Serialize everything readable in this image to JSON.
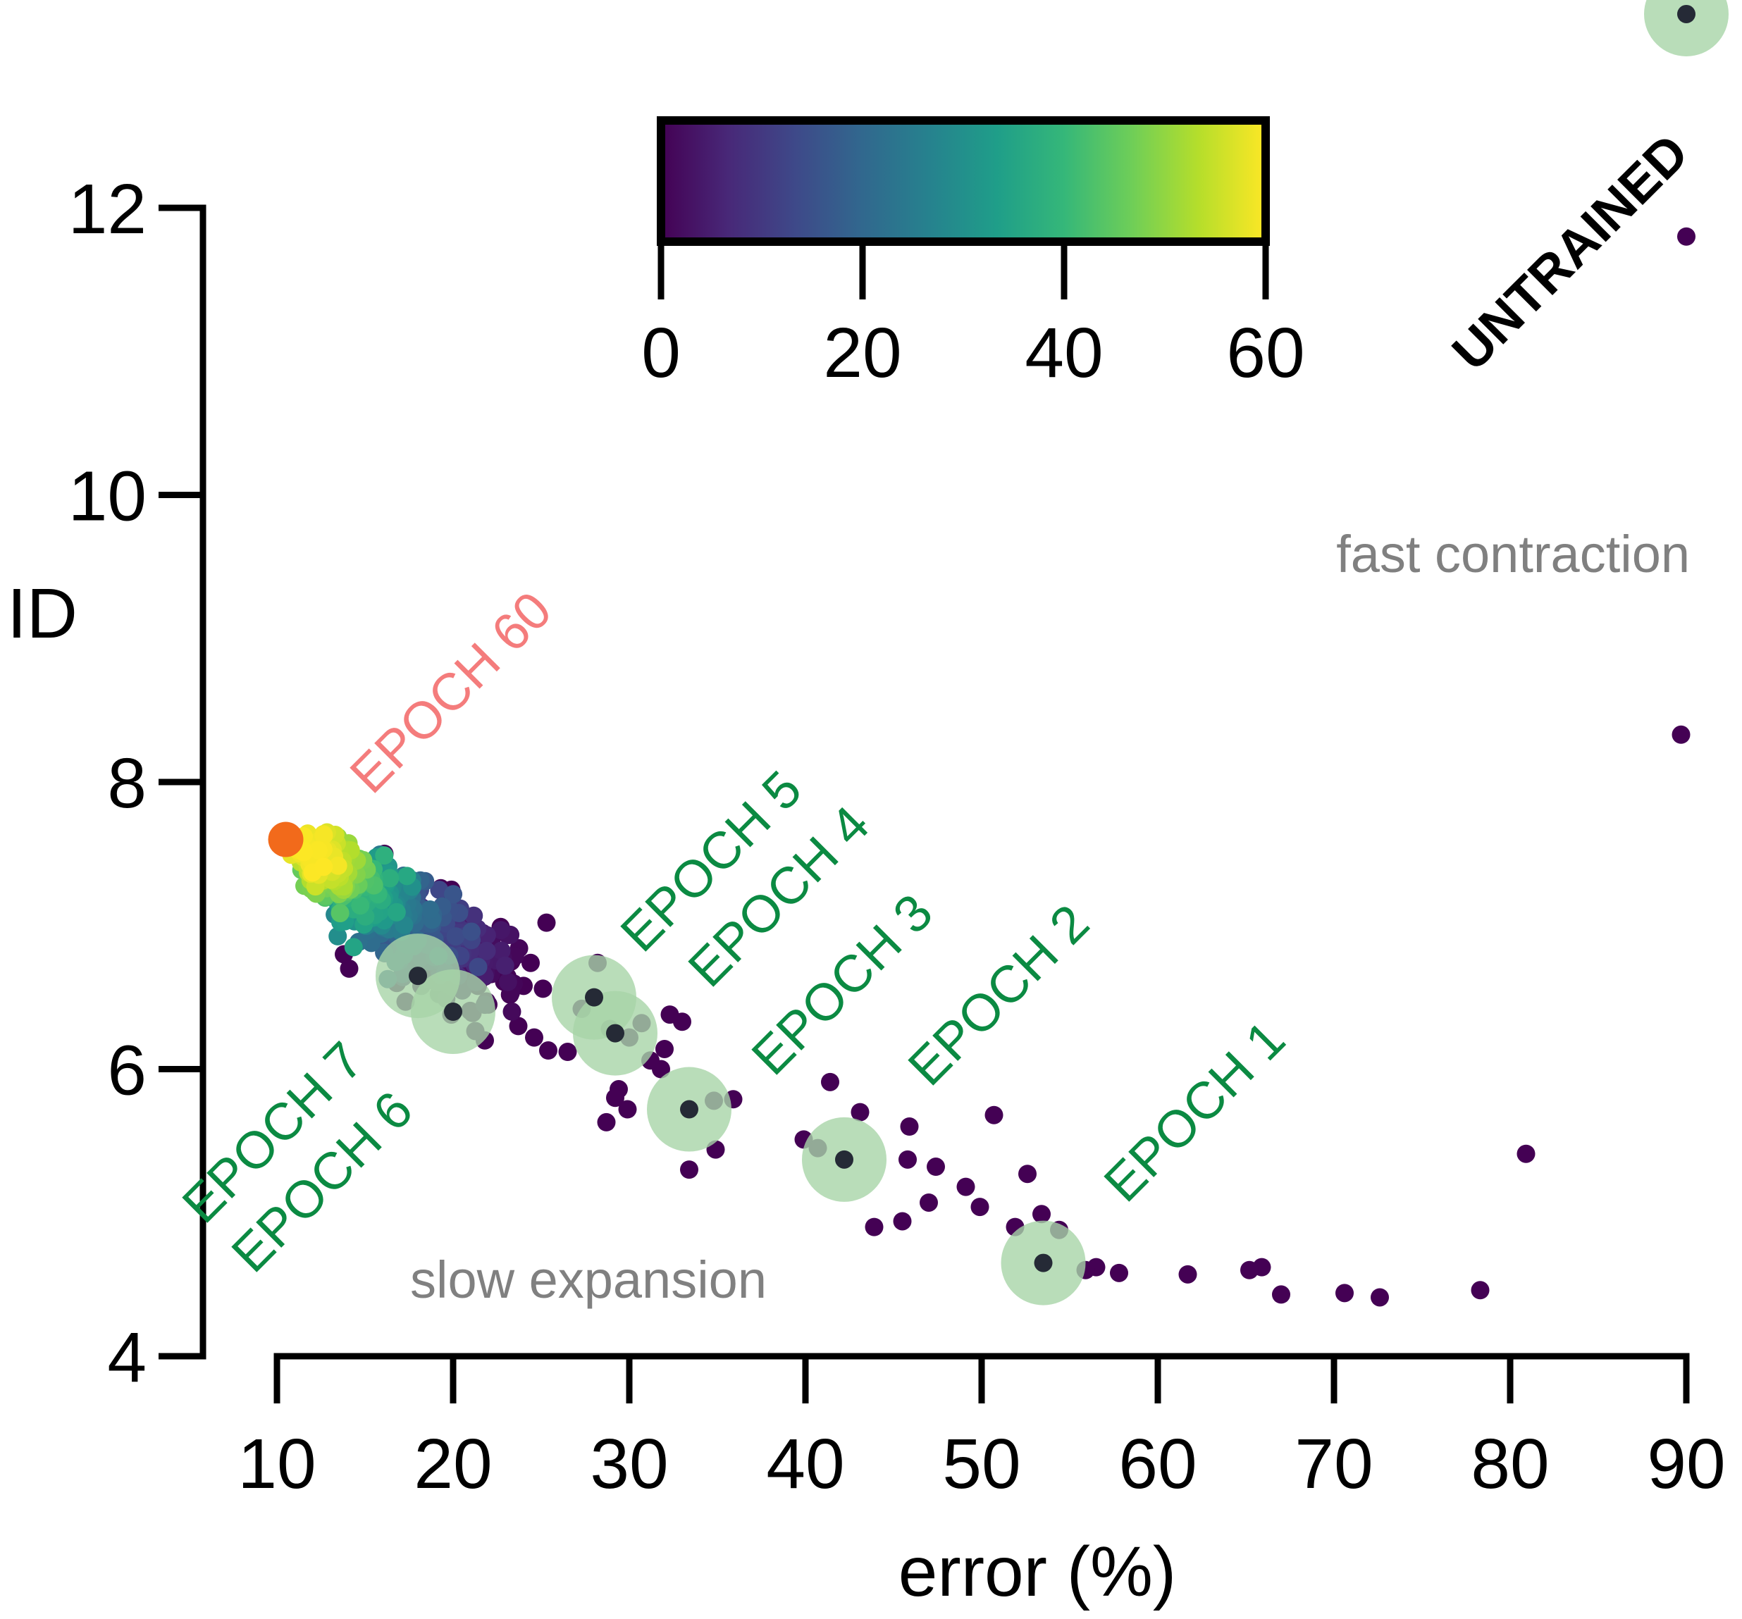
{
  "chart_data": {
    "type": "scatter",
    "xlabel": "error (%)",
    "ylabel": "ID",
    "xlim": [
      10,
      90
    ],
    "ylim": [
      4,
      12
    ],
    "xticks": [
      "10",
      "20",
      "30",
      "40",
      "50",
      "60",
      "70",
      "80",
      "90"
    ],
    "yticks": [
      "4",
      "6",
      "8",
      "10",
      "12"
    ],
    "colorbar": {
      "colormap": "viridis",
      "range": [
        0,
        60
      ],
      "ticks": [
        "0",
        "20",
        "40",
        "60"
      ],
      "highlight_tick": "60",
      "highlight_color": "#f47c7c",
      "stops": [
        "#440154",
        "#482878",
        "#3e4989",
        "#31688e",
        "#26828e",
        "#1f9e89",
        "#35b779",
        "#6ece58",
        "#b5de2b",
        "#fde725"
      ]
    },
    "colors": {
      "epoch_text": "#0b8a42",
      "epoch_halo": "#a8d5a8",
      "last_epoch_text": "#f47c7c",
      "last_epoch_point": "#f26a1b",
      "highlight_point": "#252a36",
      "region_text": "#808080"
    },
    "annotations": {
      "untrained": "UNTRAINED",
      "fast": "fast contraction",
      "slow": "slow expansion"
    },
    "epochs": [
      {
        "label": "EPOCH 1",
        "x": 53.5,
        "y": 4.65
      },
      {
        "label": "EPOCH 2",
        "x": 42.2,
        "y": 5.37
      },
      {
        "label": "EPOCH 3",
        "x": 33.4,
        "y": 5.72
      },
      {
        "label": "EPOCH 4",
        "x": 29.2,
        "y": 6.25
      },
      {
        "label": "EPOCH 5",
        "x": 28.0,
        "y": 6.5
      },
      {
        "label": "EPOCH 6",
        "x": 20.0,
        "y": 6.4
      },
      {
        "label": "EPOCH 7",
        "x": 18.0,
        "y": 6.65
      },
      {
        "label": "EPOCH 60",
        "x": 10.5,
        "y": 7.6
      }
    ],
    "untrained_point": {
      "x": 90.0,
      "y": 13.35
    },
    "sparse_points": [
      {
        "x": 90.0,
        "y": 11.8
      },
      {
        "x": 89.7,
        "y": 8.33
      },
      {
        "x": 80.9,
        "y": 5.41
      },
      {
        "x": 78.3,
        "y": 4.46
      },
      {
        "x": 72.6,
        "y": 4.41
      },
      {
        "x": 70.6,
        "y": 4.44
      },
      {
        "x": 67.0,
        "y": 4.43
      },
      {
        "x": 65.9,
        "y": 4.62
      },
      {
        "x": 65.2,
        "y": 4.6
      },
      {
        "x": 61.7,
        "y": 4.57
      },
      {
        "x": 57.8,
        "y": 4.58
      },
      {
        "x": 56.5,
        "y": 4.62
      },
      {
        "x": 55.9,
        "y": 4.6
      },
      {
        "x": 54.4,
        "y": 4.88
      },
      {
        "x": 53.4,
        "y": 4.99
      },
      {
        "x": 51.9,
        "y": 4.9
      },
      {
        "x": 52.6,
        "y": 5.27
      },
      {
        "x": 50.7,
        "y": 5.68
      },
      {
        "x": 49.9,
        "y": 5.04
      },
      {
        "x": 49.1,
        "y": 5.18
      },
      {
        "x": 47.4,
        "y": 5.32
      },
      {
        "x": 47.0,
        "y": 5.07
      },
      {
        "x": 45.9,
        "y": 5.6
      },
      {
        "x": 45.8,
        "y": 5.37
      },
      {
        "x": 45.5,
        "y": 4.94
      },
      {
        "x": 43.9,
        "y": 4.9
      },
      {
        "x": 43.1,
        "y": 5.7
      },
      {
        "x": 41.4,
        "y": 5.91
      },
      {
        "x": 40.7,
        "y": 5.45
      },
      {
        "x": 39.9,
        "y": 5.51
      },
      {
        "x": 35.9,
        "y": 5.79
      },
      {
        "x": 34.9,
        "y": 5.44
      },
      {
        "x": 33.4,
        "y": 5.3
      },
      {
        "x": 34.8,
        "y": 5.78
      },
      {
        "x": 33.0,
        "y": 6.33
      },
      {
        "x": 32.3,
        "y": 6.38
      },
      {
        "x": 31.8,
        "y": 6.0
      },
      {
        "x": 32.0,
        "y": 6.14
      },
      {
        "x": 31.2,
        "y": 6.06
      },
      {
        "x": 30.7,
        "y": 6.32
      },
      {
        "x": 30.0,
        "y": 6.22
      },
      {
        "x": 29.9,
        "y": 5.72
      },
      {
        "x": 29.4,
        "y": 5.86
      },
      {
        "x": 28.7,
        "y": 5.63
      },
      {
        "x": 29.2,
        "y": 5.8
      },
      {
        "x": 28.9,
        "y": 6.28
      },
      {
        "x": 28.2,
        "y": 6.74
      },
      {
        "x": 27.3,
        "y": 6.42
      },
      {
        "x": 26.5,
        "y": 6.12
      },
      {
        "x": 25.4,
        "y": 6.13
      },
      {
        "x": 25.3,
        "y": 7.02
      },
      {
        "x": 24.4,
        "y": 6.74
      },
      {
        "x": 24.0,
        "y": 6.58
      },
      {
        "x": 23.3,
        "y": 6.75
      },
      {
        "x": 23.1,
        "y": 6.6
      },
      {
        "x": 22.7,
        "y": 6.99
      },
      {
        "x": 22.0,
        "y": 6.8
      },
      {
        "x": 21.4,
        "y": 6.58
      },
      {
        "x": 20.9,
        "y": 7.05
      },
      {
        "x": 20.5,
        "y": 6.79
      },
      {
        "x": 19.9,
        "y": 7.25
      },
      {
        "x": 19.3,
        "y": 7.26
      },
      {
        "x": 21.8,
        "y": 6.2
      },
      {
        "x": 19.9,
        "y": 6.38
      },
      {
        "x": 22.0,
        "y": 6.45
      },
      {
        "x": 24.6,
        "y": 6.22
      },
      {
        "x": 25.1,
        "y": 6.56
      },
      {
        "x": 23.7,
        "y": 6.3
      },
      {
        "x": 18.2,
        "y": 6.58
      },
      {
        "x": 17.3,
        "y": 6.47
      },
      {
        "x": 16.8,
        "y": 6.6
      },
      {
        "x": 16.1,
        "y": 7.5
      },
      {
        "x": 14.1,
        "y": 6.7
      },
      {
        "x": 13.8,
        "y": 6.8
      }
    ],
    "cluster": {
      "center": {
        "x": 13.5,
        "y": 7.3
      },
      "count": 900,
      "epoch_range": [
        0,
        60
      ]
    }
  }
}
